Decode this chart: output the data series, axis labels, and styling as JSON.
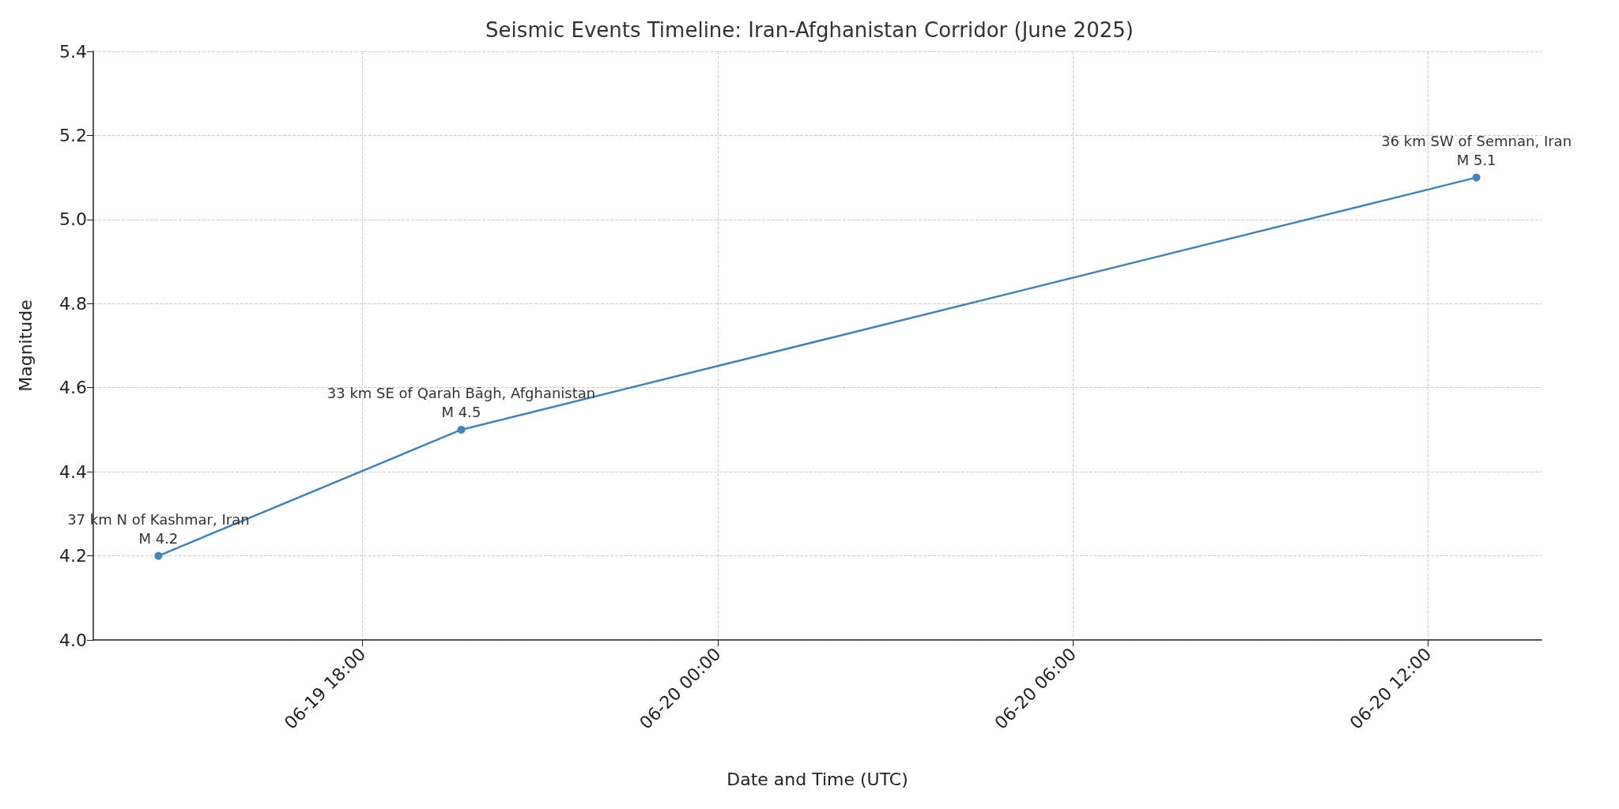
{
  "chart_data": {
    "type": "line",
    "title": "Seismic Events Timeline: Iran-Afghanistan Corridor (June 2025)",
    "xlabel": "Date and Time (UTC)",
    "ylabel": "Magnitude",
    "x": [
      "2025-06-19T14:33",
      "2025-06-19T19:40",
      "2025-06-20T12:49"
    ],
    "series": [
      {
        "color": "#4682b4",
        "values": [
          4.2,
          4.5,
          5.1
        ]
      }
    ],
    "xlim": [
      "2025-06-19T13:27",
      "2025-06-20T13:55"
    ],
    "xticks": [
      {
        "value": "2025-06-19T18:00",
        "label": "06-19 18:00"
      },
      {
        "value": "2025-06-20T00:00",
        "label": "06-20 00:00"
      },
      {
        "value": "2025-06-20T06:00",
        "label": "06-20 06:00"
      },
      {
        "value": "2025-06-20T12:00",
        "label": "06-20 12:00"
      }
    ],
    "ylim": [
      4.0,
      5.4
    ],
    "yticks": [
      {
        "value": 4.0,
        "label": "4.0"
      },
      4.2,
      4.4,
      4.6,
      4.8,
      {
        "value": 5.0,
        "label": "5.0"
      },
      5.2,
      5.4
    ],
    "annotations": [
      {
        "text": "37 km N of Kashmar, Iran\nM 4.2",
        "x": "2025-06-19T14:33",
        "y": 4.2
      },
      {
        "text": "33 km SE of Qarah Bāgh, Afghanistan\nM 4.5",
        "x": "2025-06-19T19:40",
        "y": 4.5
      },
      {
        "text": "36 km SW of Semnan, Iran\nM 5.1",
        "x": "2025-06-20T12:49",
        "y": 5.1
      }
    ],
    "grid": true,
    "marker": "circle",
    "line_style": "solid"
  }
}
